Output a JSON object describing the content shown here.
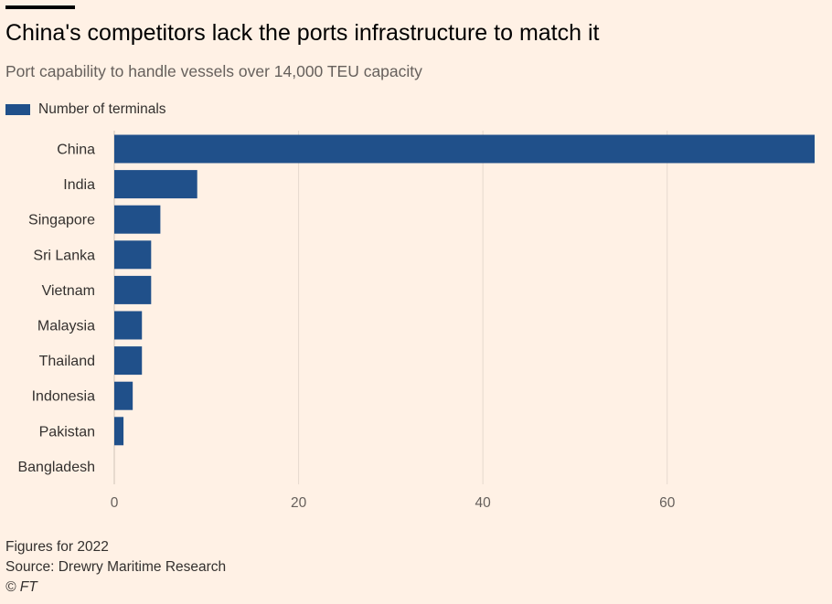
{
  "title": "China's competitors lack the ports infrastructure to match it",
  "subtitle": "Port capability to handle vessels over 14,000 TEU capacity",
  "footer": {
    "note": "Figures for 2022",
    "source": "Source: Drewry Maritime Research",
    "copyright": "© FT"
  },
  "colors": {
    "bar": "#20508a",
    "background": "#fff1e5",
    "grid": "#e6d9ce"
  },
  "chart_data": {
    "type": "bar",
    "orientation": "horizontal",
    "categories": [
      "China",
      "India",
      "Singapore",
      "Sri Lanka",
      "Vietnam",
      "Malaysia",
      "Thailand",
      "Indonesia",
      "Pakistan",
      "Bangladesh"
    ],
    "series": [
      {
        "name": "Number of terminals",
        "values": [
          76,
          9,
          5,
          4,
          4,
          3,
          3,
          2,
          1,
          0
        ]
      }
    ],
    "xlim": [
      0,
      76
    ],
    "xticks": [
      0,
      20,
      40,
      60
    ],
    "grid": true,
    "legend": "top-left"
  }
}
